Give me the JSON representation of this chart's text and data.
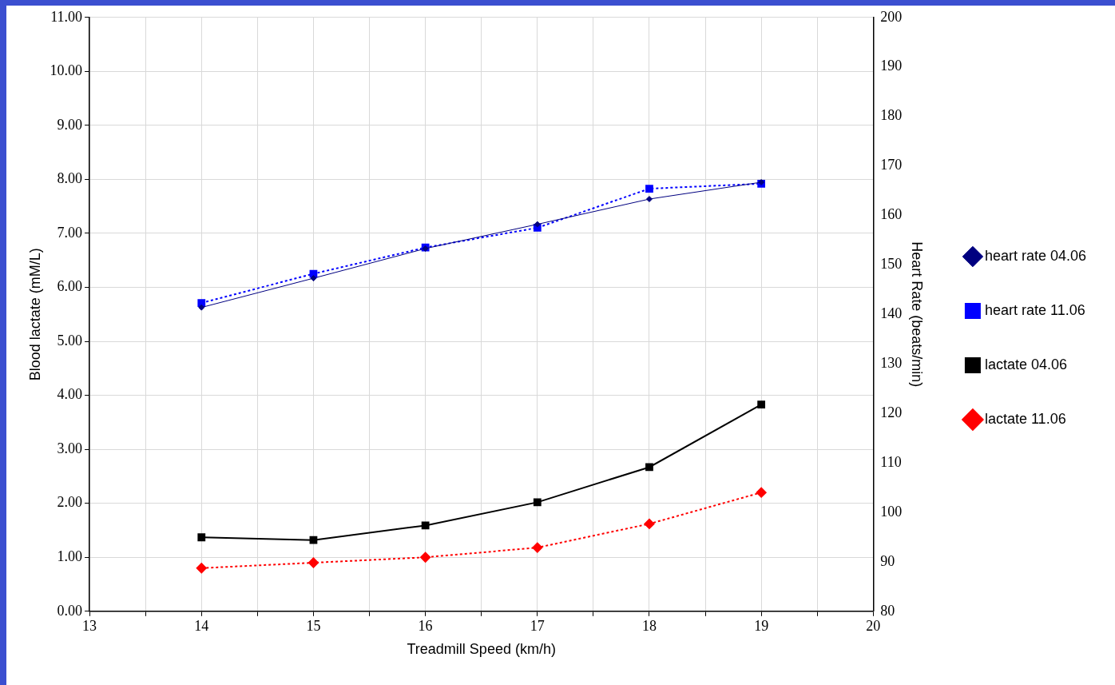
{
  "chart_data": {
    "type": "line",
    "xlabel": "Treadmill Speed (km/h)",
    "ylabel": "Blood lactate (mM/L)",
    "y2label": "Heart Rate (beats/min)",
    "x": [
      14,
      15,
      16,
      17,
      18,
      19
    ],
    "xlim": [
      13,
      20
    ],
    "xticks": [
      13,
      {
        "value": 13.5,
        "label": null
      },
      14,
      {
        "value": 14.5,
        "label": null
      },
      15,
      {
        "value": 15.5,
        "label": null
      },
      16,
      {
        "value": 16.5,
        "label": null
      },
      17,
      {
        "value": 17.5,
        "label": null
      },
      18,
      {
        "value": 18.5,
        "label": null
      },
      19,
      {
        "value": 19.5,
        "label": null
      },
      20
    ],
    "ylim": [
      0,
      11
    ],
    "yticks": [
      {
        "value": 0,
        "label": "0.00"
      },
      {
        "value": 1,
        "label": "1.00"
      },
      {
        "value": 2,
        "label": "2.00"
      },
      {
        "value": 3,
        "label": "3.00"
      },
      {
        "value": 4,
        "label": "4.00"
      },
      {
        "value": 5,
        "label": "5.00"
      },
      {
        "value": 6,
        "label": "6.00"
      },
      {
        "value": 7,
        "label": "7.00"
      },
      {
        "value": 8,
        "label": "8.00"
      },
      {
        "value": 9,
        "label": "9.00"
      },
      {
        "value": 10,
        "label": "10.00"
      },
      {
        "value": 11,
        "label": "11.00"
      }
    ],
    "y2lim": [
      80,
      200
    ],
    "y2ticks": [
      80,
      90,
      100,
      110,
      120,
      130,
      140,
      150,
      160,
      170,
      180,
      190,
      200
    ],
    "grid": true,
    "legend": "right",
    "series": [
      {
        "name": "lactate 11.06",
        "color": "#ff0000",
        "marker": "diamond",
        "line_style": "dotted",
        "values": [
          0.8,
          0.9,
          1.0,
          1.18,
          1.62,
          2.2
        ]
      },
      {
        "name": "lactate 04.06",
        "color": "#000000",
        "marker": "square",
        "line_style": "solid",
        "values": [
          1.37,
          1.32,
          1.59,
          2.02,
          2.67,
          3.83
        ]
      },
      {
        "name": "heart rate 11.06",
        "color": "#0000ff",
        "marker": "square",
        "line_style": "dotted",
        "axis": "y2",
        "values": [
          142.3,
          148.2,
          153.5,
          157.5,
          165.4,
          166.4
        ]
      },
      {
        "name": "heart rate 04.06",
        "color": "#000080",
        "marker": "diamond",
        "line_style": "solid",
        "axis": "y2",
        "values": [
          141.4,
          147.3,
          153.3,
          158.2,
          163.3,
          166.7
        ]
      }
    ]
  }
}
